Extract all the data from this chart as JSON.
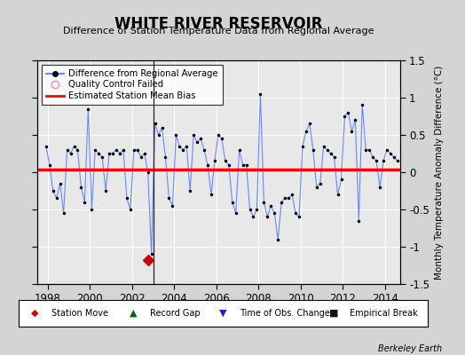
{
  "title": "WHITE RIVER RESERVOIR",
  "subtitle": "Difference of Station Temperature Data from Regional Average",
  "ylabel_right": "Monthly Temperature Anomaly Difference (°C)",
  "xlim": [
    1997.5,
    2014.7
  ],
  "ylim": [
    -1.5,
    1.5
  ],
  "yticks": [
    -1.5,
    -1.0,
    -0.5,
    0.0,
    0.5,
    1.0,
    1.5
  ],
  "xticks": [
    1998,
    2000,
    2002,
    2004,
    2006,
    2008,
    2010,
    2012,
    2014
  ],
  "mean_bias": 0.03,
  "station_move_x": 2002.75,
  "station_move_y": -1.18,
  "break_x": 2003.0,
  "bg_color": "#e8e8e8",
  "fig_color": "#d4d4d4",
  "line_color": "#6688ff",
  "dot_color": "#000000",
  "bias_color": "#ff0000",
  "station_move_color": "#cc0000",
  "watermark": "Berkeley Earth",
  "data_x": [
    1997.917,
    1998.083,
    1998.25,
    1998.417,
    1998.583,
    1998.75,
    1998.917,
    1999.083,
    1999.25,
    1999.417,
    1999.583,
    1999.75,
    1999.917,
    2000.083,
    2000.25,
    2000.417,
    2000.583,
    2000.75,
    2000.917,
    2001.083,
    2001.25,
    2001.417,
    2001.583,
    2001.75,
    2001.917,
    2002.083,
    2002.25,
    2002.417,
    2002.583,
    2002.75,
    2002.917,
    2003.083,
    2003.25,
    2003.417,
    2003.583,
    2003.75,
    2003.917,
    2004.083,
    2004.25,
    2004.417,
    2004.583,
    2004.75,
    2004.917,
    2005.083,
    2005.25,
    2005.417,
    2005.583,
    2005.75,
    2005.917,
    2006.083,
    2006.25,
    2006.417,
    2006.583,
    2006.75,
    2006.917,
    2007.083,
    2007.25,
    2007.417,
    2007.583,
    2007.75,
    2007.917,
    2008.083,
    2008.25,
    2008.417,
    2008.583,
    2008.75,
    2008.917,
    2009.083,
    2009.25,
    2009.417,
    2009.583,
    2009.75,
    2009.917,
    2010.083,
    2010.25,
    2010.417,
    2010.583,
    2010.75,
    2010.917,
    2011.083,
    2011.25,
    2011.417,
    2011.583,
    2011.75,
    2011.917,
    2012.083,
    2012.25,
    2012.417,
    2012.583,
    2012.75,
    2012.917,
    2013.083,
    2013.25,
    2013.417,
    2013.583,
    2013.75,
    2013.917,
    2014.083,
    2014.25,
    2014.417,
    2014.583
  ],
  "data_y": [
    0.35,
    0.1,
    -0.25,
    -0.35,
    -0.15,
    -0.55,
    0.3,
    0.25,
    0.35,
    0.3,
    -0.2,
    -0.4,
    0.85,
    -0.5,
    0.3,
    0.25,
    0.2,
    -0.25,
    0.25,
    0.25,
    0.3,
    0.25,
    0.3,
    -0.35,
    -0.5,
    0.3,
    0.3,
    0.2,
    0.25,
    0.0,
    -1.1,
    0.65,
    0.5,
    0.6,
    0.2,
    -0.35,
    -0.45,
    0.5,
    0.35,
    0.3,
    0.35,
    -0.25,
    0.5,
    0.4,
    0.45,
    0.3,
    0.1,
    -0.3,
    0.15,
    0.5,
    0.45,
    0.15,
    0.1,
    -0.4,
    -0.55,
    0.3,
    0.1,
    0.1,
    -0.5,
    -0.6,
    -0.5,
    1.05,
    -0.4,
    -0.6,
    -0.45,
    -0.55,
    -0.9,
    -0.4,
    -0.35,
    -0.35,
    -0.3,
    -0.55,
    -0.6,
    0.35,
    0.55,
    0.65,
    0.3,
    -0.2,
    -0.15,
    0.35,
    0.3,
    0.25,
    0.2,
    -0.3,
    -0.1,
    0.75,
    0.8,
    0.55,
    0.7,
    -0.65,
    0.9,
    0.3,
    0.3,
    0.2,
    0.15,
    -0.2,
    0.15,
    0.3,
    0.25,
    0.2,
    0.15
  ]
}
